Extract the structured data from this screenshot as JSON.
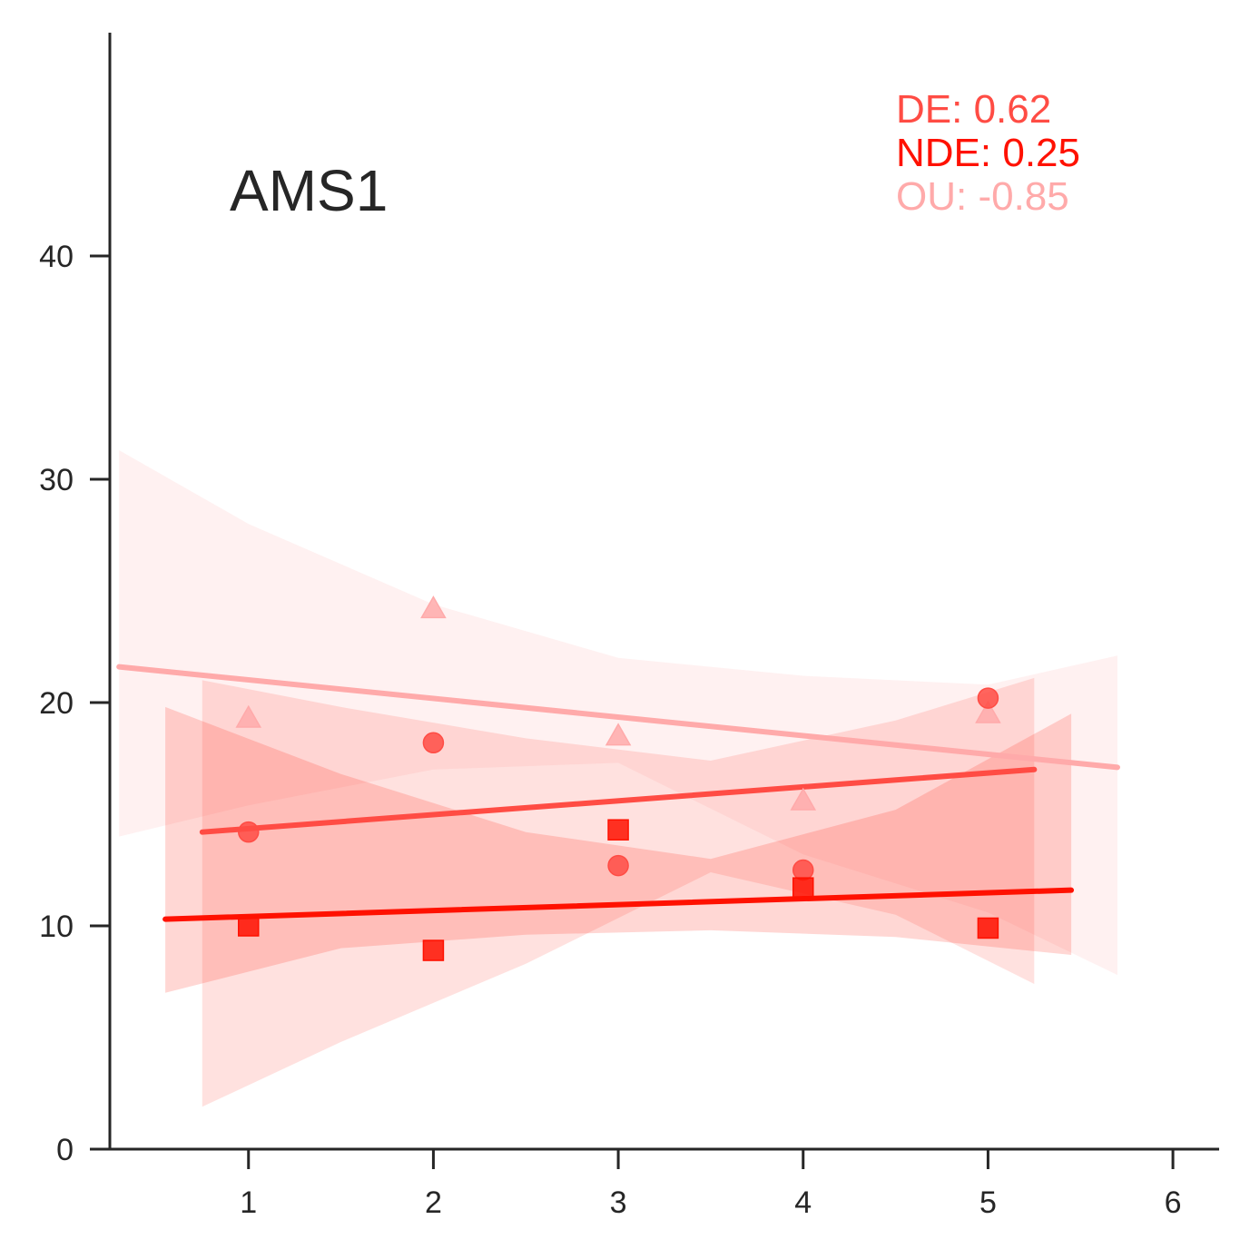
{
  "chart_data": {
    "type": "scatter",
    "title": "AMS1",
    "xlabel": "",
    "ylabel": "",
    "xlim": [
      0.25,
      6.25
    ],
    "ylim": [
      0,
      50
    ],
    "xticks": [
      1,
      2,
      3,
      4,
      5,
      6
    ],
    "yticks": [
      0,
      10,
      20,
      30,
      40
    ],
    "grid": false,
    "annotations": [
      {
        "label": "DE: 0.62",
        "series": "DE",
        "color": "#ff4c44"
      },
      {
        "label": "NDE: 0.25",
        "series": "NDE",
        "color": "#ff1100"
      },
      {
        "label": "OU: -0.85",
        "series": "OU",
        "color": "#ffaaaa"
      }
    ],
    "series": [
      {
        "key": "OU",
        "marker": "triangle",
        "color": "#ffaaaa",
        "points": [
          {
            "x": 1,
            "y": 19.3
          },
          {
            "x": 2,
            "y": 24.2
          },
          {
            "x": 3,
            "y": 18.5
          },
          {
            "x": 4,
            "y": 15.6
          },
          {
            "x": 5,
            "y": 19.5
          }
        ],
        "fit": {
          "x": [
            0.3,
            5.7
          ],
          "y": [
            21.6,
            17.1
          ]
        },
        "ci": {
          "x": [
            0.3,
            1.0,
            2.0,
            3.0,
            4.0,
            5.0,
            5.7
          ],
          "upper": [
            31.3,
            28.0,
            24.4,
            22.0,
            21.2,
            20.8,
            22.1
          ],
          "lower": [
            14.0,
            15.4,
            17.0,
            17.3,
            13.2,
            10.6,
            7.8
          ]
        }
      },
      {
        "key": "DE",
        "marker": "circle",
        "color": "#ff4c44",
        "points": [
          {
            "x": 1,
            "y": 14.2
          },
          {
            "x": 2,
            "y": 18.2
          },
          {
            "x": 3,
            "y": 12.7
          },
          {
            "x": 4,
            "y": 12.5
          },
          {
            "x": 5,
            "y": 20.2
          }
        ],
        "fit": {
          "x": [
            0.75,
            5.25
          ],
          "y": [
            14.2,
            17.0
          ]
        },
        "ci": {
          "x": [
            0.75,
            1.5,
            2.5,
            3.5,
            4.5,
            5.25
          ],
          "upper": [
            21.0,
            19.8,
            18.4,
            17.4,
            19.2,
            21.1
          ],
          "lower": [
            1.9,
            4.8,
            8.3,
            12.4,
            10.5,
            7.4
          ]
        }
      },
      {
        "key": "NDE",
        "marker": "square",
        "color": "#ff1100",
        "points": [
          {
            "x": 1,
            "y": 10.0
          },
          {
            "x": 2,
            "y": 8.9
          },
          {
            "x": 3,
            "y": 14.3
          },
          {
            "x": 4,
            "y": 11.7
          },
          {
            "x": 5,
            "y": 9.9
          }
        ],
        "fit": {
          "x": [
            0.55,
            5.45
          ],
          "y": [
            10.3,
            11.6
          ]
        },
        "ci": {
          "x": [
            0.55,
            1.5,
            2.5,
            3.5,
            4.5,
            5.45
          ],
          "upper": [
            19.8,
            16.8,
            14.2,
            13.0,
            15.2,
            19.5
          ],
          "lower": [
            7.0,
            9.0,
            9.6,
            9.8,
            9.5,
            8.7
          ]
        }
      }
    ]
  }
}
